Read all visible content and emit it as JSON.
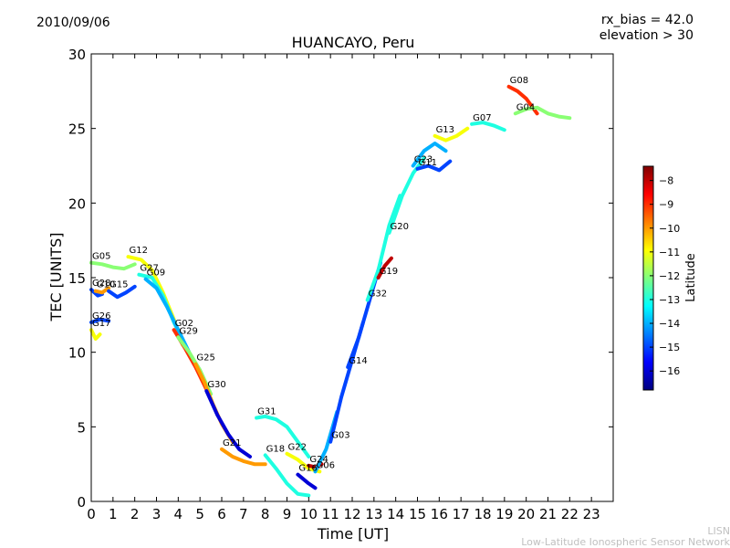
{
  "header": {
    "date": "2010/09/06",
    "rx_bias": "rx_bias = 42.0",
    "elevation": "elevation > 30"
  },
  "footer": {
    "org_short": "LISN",
    "org_full": "Low-Latitude Ionospheric Sensor Network"
  },
  "colors": {
    "jet": [
      "#00007f",
      "#0000ff",
      "#007fff",
      "#00ffff",
      "#7fff7f",
      "#ffff00",
      "#ff7f00",
      "#ff0000",
      "#7f0000"
    ]
  },
  "chart_data": {
    "type": "line",
    "title": "HUANCAYO, Peru",
    "xlabel": "Time [UT]",
    "ylabel": "TEC [UNITS]",
    "xlim": [
      0,
      24
    ],
    "ylim": [
      0,
      30
    ],
    "xticks": [
      0,
      1,
      2,
      3,
      4,
      5,
      6,
      7,
      8,
      9,
      10,
      11,
      12,
      13,
      14,
      15,
      16,
      17,
      18,
      19,
      20,
      21,
      22,
      23
    ],
    "yticks": [
      0,
      5,
      10,
      15,
      20,
      25,
      30
    ],
    "colorbar": {
      "label": "Latitude",
      "range": [
        -16.8,
        -7.4
      ],
      "ticks": [
        -8,
        -9,
        -10,
        -11,
        -12,
        -13,
        -14,
        -15,
        -16
      ]
    },
    "series": [
      {
        "name": "G05",
        "lat": -12,
        "points": [
          [
            0,
            16
          ],
          [
            0.5,
            15.9
          ],
          [
            1,
            15.7
          ],
          [
            1.5,
            15.6
          ],
          [
            2,
            15.9
          ]
        ]
      },
      {
        "name": "G12",
        "lat": -11,
        "points": [
          [
            1.7,
            16.4
          ],
          [
            2.3,
            16.2
          ],
          [
            2.8,
            15.5
          ],
          [
            3.3,
            14
          ],
          [
            3.8,
            12.2
          ],
          [
            4.2,
            10.5
          ]
        ]
      },
      {
        "name": "G27",
        "lat": -13,
        "points": [
          [
            2.2,
            15.2
          ],
          [
            2.8,
            15
          ],
          [
            3.3,
            13.8
          ],
          [
            3.8,
            12
          ],
          [
            4.3,
            10.5
          ]
        ]
      },
      {
        "name": "G09",
        "lat": -14,
        "points": [
          [
            2.5,
            14.9
          ],
          [
            3,
            14.3
          ],
          [
            3.5,
            13
          ],
          [
            4,
            11.5
          ],
          [
            4.5,
            10
          ]
        ]
      },
      {
        "name": "G28",
        "lat": -15,
        "points": [
          [
            0,
            14.2
          ],
          [
            0.3,
            13.8
          ],
          [
            0.5,
            13.9
          ]
        ]
      },
      {
        "name": "G10",
        "lat": -10,
        "points": [
          [
            0.2,
            14.1
          ],
          [
            0.5,
            14
          ],
          [
            0.8,
            14.3
          ]
        ]
      },
      {
        "name": "G15",
        "lat": -15,
        "points": [
          [
            0.8,
            14.1
          ],
          [
            1.2,
            13.7
          ],
          [
            1.6,
            14
          ],
          [
            2,
            14.4
          ]
        ]
      },
      {
        "name": "G26",
        "lat": -15,
        "points": [
          [
            0,
            12
          ],
          [
            0.4,
            12.2
          ],
          [
            0.8,
            12.1
          ]
        ]
      },
      {
        "name": "G17",
        "lat": -11,
        "points": [
          [
            0,
            11.5
          ],
          [
            0.2,
            10.9
          ],
          [
            0.4,
            11.2
          ]
        ]
      },
      {
        "name": "G02",
        "lat": -9,
        "points": [
          [
            3.8,
            11.5
          ],
          [
            4.3,
            10.3
          ],
          [
            4.8,
            9
          ],
          [
            5.3,
            7.5
          ]
        ]
      },
      {
        "name": "G29",
        "lat": -12,
        "points": [
          [
            4,
            11
          ],
          [
            4.5,
            10
          ],
          [
            5,
            8.8
          ],
          [
            5.5,
            7.2
          ]
        ]
      },
      {
        "name": "G25",
        "lat": -10,
        "points": [
          [
            4.8,
            9.2
          ],
          [
            5.2,
            8
          ],
          [
            5.6,
            6.5
          ],
          [
            6,
            5.2
          ],
          [
            6.5,
            4
          ]
        ]
      },
      {
        "name": "G30",
        "lat": -16,
        "points": [
          [
            5.3,
            7.4
          ],
          [
            5.8,
            5.8
          ],
          [
            6.3,
            4.5
          ],
          [
            6.8,
            3.5
          ],
          [
            7.3,
            3
          ]
        ]
      },
      {
        "name": "G31",
        "lat": -13,
        "points": [
          [
            7.6,
            5.6
          ],
          [
            8,
            5.7
          ],
          [
            8.5,
            5.5
          ],
          [
            9,
            5
          ],
          [
            9.5,
            4
          ],
          [
            10,
            3
          ]
        ]
      },
      {
        "name": "G21",
        "lat": -10,
        "points": [
          [
            6,
            3.5
          ],
          [
            6.5,
            3
          ],
          [
            7,
            2.7
          ],
          [
            7.5,
            2.5
          ],
          [
            8,
            2.5
          ]
        ]
      },
      {
        "name": "G18",
        "lat": -13,
        "points": [
          [
            8,
            3.1
          ],
          [
            8.5,
            2.2
          ],
          [
            9,
            1.2
          ],
          [
            9.5,
            0.5
          ],
          [
            10,
            0.4
          ]
        ]
      },
      {
        "name": "G22",
        "lat": -11,
        "points": [
          [
            9,
            3.2
          ],
          [
            9.5,
            2.8
          ],
          [
            10,
            2.2
          ],
          [
            10.5,
            2
          ]
        ]
      },
      {
        "name": "G24",
        "lat": -8,
        "points": [
          [
            10,
            2.4
          ],
          [
            10.3,
            2.3
          ],
          [
            10.6,
            2.5
          ]
        ]
      },
      {
        "name": "G16",
        "lat": -16,
        "points": [
          [
            9.5,
            1.8
          ],
          [
            10,
            1.2
          ],
          [
            10.3,
            0.9
          ]
        ]
      },
      {
        "name": "G06",
        "lat": -14,
        "points": [
          [
            10.3,
            2
          ],
          [
            10.8,
            3.5
          ],
          [
            11.3,
            6
          ]
        ]
      },
      {
        "name": "G03",
        "lat": -15,
        "points": [
          [
            11,
            4
          ],
          [
            11.5,
            7
          ],
          [
            12,
            9.5
          ],
          [
            12.5,
            12
          ]
        ]
      },
      {
        "name": "G14",
        "lat": -15,
        "points": [
          [
            11.8,
            9
          ],
          [
            12.3,
            11
          ],
          [
            12.8,
            13.5
          ],
          [
            13.3,
            16
          ]
        ]
      },
      {
        "name": "G32",
        "lat": -13,
        "points": [
          [
            12.7,
            13.5
          ],
          [
            13.2,
            15.5
          ],
          [
            13.7,
            18.5
          ],
          [
            14.2,
            20.5
          ]
        ]
      },
      {
        "name": "G19",
        "lat": -8,
        "points": [
          [
            13.2,
            15
          ],
          [
            13.5,
            15.8
          ],
          [
            13.8,
            16.3
          ]
        ]
      },
      {
        "name": "G20",
        "lat": -13,
        "points": [
          [
            13.7,
            18
          ],
          [
            14.3,
            20.5
          ],
          [
            14.8,
            22
          ],
          [
            15.3,
            23
          ]
        ]
      },
      {
        "name": "G23",
        "lat": -14,
        "points": [
          [
            14.8,
            22.5
          ],
          [
            15.3,
            23.5
          ],
          [
            15.8,
            24
          ],
          [
            16.3,
            23.5
          ]
        ]
      },
      {
        "name": "G11",
        "lat": -15,
        "points": [
          [
            15,
            22.3
          ],
          [
            15.5,
            22.5
          ],
          [
            16,
            22.2
          ],
          [
            16.5,
            22.8
          ]
        ]
      },
      {
        "name": "G13",
        "lat": -11,
        "points": [
          [
            15.8,
            24.5
          ],
          [
            16.3,
            24.2
          ],
          [
            16.8,
            24.5
          ],
          [
            17.3,
            25
          ]
        ]
      },
      {
        "name": "G07",
        "lat": -13,
        "points": [
          [
            17.5,
            25.3
          ],
          [
            18,
            25.4
          ],
          [
            18.5,
            25.2
          ],
          [
            19,
            24.9
          ]
        ]
      },
      {
        "name": "G08",
        "lat": -9,
        "points": [
          [
            19.2,
            27.8
          ],
          [
            19.6,
            27.5
          ],
          [
            20,
            27
          ],
          [
            20.5,
            26
          ]
        ]
      },
      {
        "name": "G04",
        "lat": -12,
        "points": [
          [
            19.5,
            26
          ],
          [
            20,
            26.3
          ],
          [
            20.5,
            26.4
          ],
          [
            21,
            26
          ],
          [
            21.5,
            25.8
          ],
          [
            22,
            25.7
          ]
        ]
      }
    ]
  }
}
